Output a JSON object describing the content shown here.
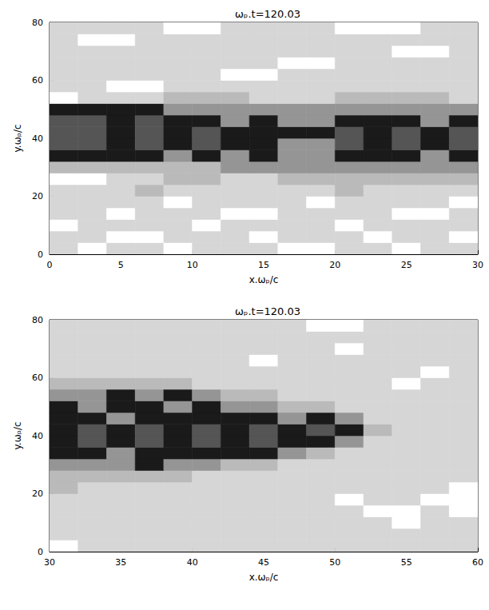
{
  "chart_data": [
    {
      "type": "heatmap",
      "title": "ωₚ.t=120.03",
      "x_label": "x.ωₚ/c",
      "y_label": "y.ωₚ/c",
      "xlim": [
        0,
        30
      ],
      "xticks": [
        0,
        5,
        10,
        15,
        20,
        25,
        30
      ],
      "ylim": [
        0,
        80
      ],
      "yticks": [
        0,
        20,
        40,
        60,
        80
      ],
      "grid": false,
      "colors": [
        "#ffffff",
        "#d6d6d6",
        "#bababa",
        "#959595",
        "#1a1a1a",
        "#555555"
      ],
      "xbins": [
        0,
        2,
        4,
        6,
        8,
        10,
        12,
        14,
        16,
        18,
        20,
        22,
        24,
        26,
        28,
        30
      ],
      "ybins": [
        0,
        4,
        8,
        12,
        16,
        20,
        24,
        28,
        32,
        36,
        40,
        44,
        48,
        52,
        56,
        60,
        64,
        68,
        72,
        76,
        80
      ],
      "cells": [
        [
          1,
          0,
          1,
          1,
          0,
          1,
          1,
          1,
          0,
          0,
          1,
          1,
          0,
          1,
          1
        ],
        [
          1,
          1,
          0,
          0,
          1,
          1,
          1,
          0,
          1,
          1,
          1,
          0,
          1,
          1,
          0
        ],
        [
          0,
          1,
          1,
          1,
          1,
          0,
          1,
          1,
          1,
          1,
          0,
          1,
          1,
          1,
          1
        ],
        [
          1,
          1,
          0,
          1,
          1,
          1,
          0,
          0,
          1,
          1,
          1,
          1,
          0,
          0,
          1
        ],
        [
          1,
          1,
          1,
          1,
          0,
          1,
          1,
          1,
          1,
          0,
          1,
          1,
          1,
          1,
          0
        ],
        [
          1,
          1,
          1,
          2,
          1,
          1,
          1,
          1,
          1,
          1,
          2,
          1,
          1,
          1,
          1
        ],
        [
          0,
          0,
          1,
          1,
          2,
          2,
          1,
          1,
          2,
          2,
          2,
          2,
          2,
          2,
          2
        ],
        [
          2,
          2,
          2,
          2,
          2,
          2,
          3,
          3,
          3,
          3,
          3,
          3,
          3,
          3,
          3
        ],
        [
          4,
          4,
          4,
          4,
          3,
          4,
          3,
          4,
          3,
          3,
          4,
          4,
          4,
          3,
          4
        ],
        [
          5,
          5,
          4,
          5,
          4,
          5,
          4,
          4,
          3,
          3,
          5,
          4,
          5,
          4,
          5
        ],
        [
          5,
          5,
          4,
          5,
          4,
          5,
          4,
          4,
          4,
          4,
          5,
          4,
          5,
          4,
          5
        ],
        [
          5,
          5,
          4,
          5,
          4,
          4,
          3,
          4,
          3,
          3,
          4,
          4,
          4,
          3,
          4
        ],
        [
          4,
          4,
          4,
          4,
          3,
          3,
          3,
          3,
          3,
          3,
          3,
          3,
          3,
          3,
          3
        ],
        [
          0,
          1,
          1,
          1,
          2,
          2,
          2,
          1,
          1,
          1,
          2,
          2,
          2,
          2,
          1
        ],
        [
          1,
          1,
          0,
          0,
          1,
          1,
          1,
          1,
          1,
          1,
          1,
          1,
          1,
          1,
          1
        ],
        [
          1,
          1,
          1,
          1,
          1,
          1,
          0,
          0,
          1,
          1,
          1,
          1,
          1,
          1,
          1
        ],
        [
          1,
          1,
          1,
          1,
          1,
          1,
          1,
          1,
          0,
          0,
          1,
          1,
          1,
          1,
          1
        ],
        [
          1,
          1,
          1,
          1,
          1,
          1,
          1,
          1,
          1,
          1,
          1,
          1,
          0,
          0,
          1
        ],
        [
          1,
          0,
          0,
          1,
          1,
          1,
          1,
          1,
          1,
          1,
          1,
          1,
          1,
          1,
          1
        ],
        [
          1,
          1,
          1,
          1,
          0,
          0,
          1,
          1,
          1,
          1,
          0,
          0,
          0,
          1,
          1
        ]
      ]
    },
    {
      "type": "heatmap",
      "title": "ωₚ.t=120.03",
      "x_label": "x.ωₚ/c",
      "y_label": "y.ωₚ/c",
      "xlim": [
        30,
        60
      ],
      "xticks": [
        30,
        35,
        40,
        45,
        50,
        55,
        60
      ],
      "ylim": [
        0,
        80
      ],
      "yticks": [
        0,
        20,
        40,
        60,
        80
      ],
      "grid": false,
      "colors": [
        "#ffffff",
        "#d6d6d6",
        "#bababa",
        "#959595",
        "#1a1a1a",
        "#555555"
      ],
      "xbins": [
        30,
        32,
        34,
        36,
        38,
        40,
        42,
        44,
        46,
        48,
        50,
        52,
        54,
        56,
        58,
        60
      ],
      "ybins": [
        0,
        4,
        8,
        12,
        16,
        20,
        24,
        28,
        32,
        36,
        40,
        44,
        48,
        52,
        56,
        60,
        64,
        68,
        72,
        76,
        80
      ],
      "cells": [
        [
          0,
          1,
          1,
          1,
          1,
          1,
          1,
          1,
          1,
          1,
          1,
          1,
          1,
          1,
          1
        ],
        [
          1,
          1,
          1,
          1,
          1,
          1,
          1,
          1,
          1,
          1,
          1,
          1,
          1,
          1,
          1
        ],
        [
          1,
          1,
          1,
          1,
          1,
          1,
          1,
          1,
          1,
          1,
          1,
          1,
          0,
          1,
          1
        ],
        [
          1,
          1,
          1,
          1,
          1,
          1,
          1,
          1,
          1,
          1,
          1,
          0,
          0,
          1,
          0
        ],
        [
          1,
          1,
          1,
          1,
          1,
          1,
          1,
          1,
          1,
          1,
          0,
          1,
          1,
          0,
          0
        ],
        [
          2,
          1,
          1,
          1,
          1,
          1,
          1,
          1,
          1,
          1,
          1,
          1,
          1,
          1,
          0
        ],
        [
          2,
          2,
          2,
          2,
          2,
          1,
          1,
          1,
          1,
          1,
          1,
          1,
          1,
          1,
          1
        ],
        [
          3,
          3,
          3,
          4,
          3,
          3,
          2,
          2,
          1,
          1,
          1,
          1,
          1,
          1,
          1
        ],
        [
          4,
          4,
          3,
          4,
          4,
          4,
          4,
          4,
          3,
          2,
          1,
          1,
          1,
          1,
          1
        ],
        [
          4,
          5,
          4,
          5,
          4,
          5,
          4,
          5,
          4,
          4,
          3,
          1,
          1,
          1,
          1
        ],
        [
          4,
          5,
          4,
          5,
          4,
          5,
          4,
          5,
          4,
          5,
          4,
          2,
          1,
          1,
          1
        ],
        [
          4,
          4,
          3,
          4,
          4,
          4,
          4,
          4,
          3,
          4,
          3,
          1,
          1,
          1,
          1
        ],
        [
          4,
          3,
          4,
          4,
          3,
          4,
          3,
          3,
          2,
          2,
          1,
          1,
          1,
          1,
          1
        ],
        [
          3,
          3,
          4,
          3,
          4,
          3,
          2,
          2,
          1,
          1,
          1,
          1,
          1,
          1,
          1
        ],
        [
          2,
          2,
          2,
          2,
          2,
          1,
          1,
          1,
          1,
          1,
          1,
          1,
          0,
          1,
          1
        ],
        [
          1,
          1,
          1,
          1,
          1,
          1,
          1,
          1,
          1,
          1,
          1,
          1,
          1,
          0,
          1
        ],
        [
          1,
          1,
          1,
          1,
          1,
          1,
          1,
          0,
          1,
          1,
          1,
          1,
          1,
          1,
          1
        ],
        [
          1,
          1,
          1,
          1,
          1,
          1,
          1,
          1,
          1,
          1,
          0,
          1,
          1,
          1,
          1
        ],
        [
          1,
          1,
          1,
          1,
          1,
          1,
          1,
          1,
          1,
          1,
          1,
          1,
          1,
          1,
          1
        ],
        [
          1,
          1,
          1,
          1,
          1,
          1,
          1,
          1,
          1,
          0,
          0,
          1,
          1,
          1,
          1
        ]
      ]
    }
  ]
}
